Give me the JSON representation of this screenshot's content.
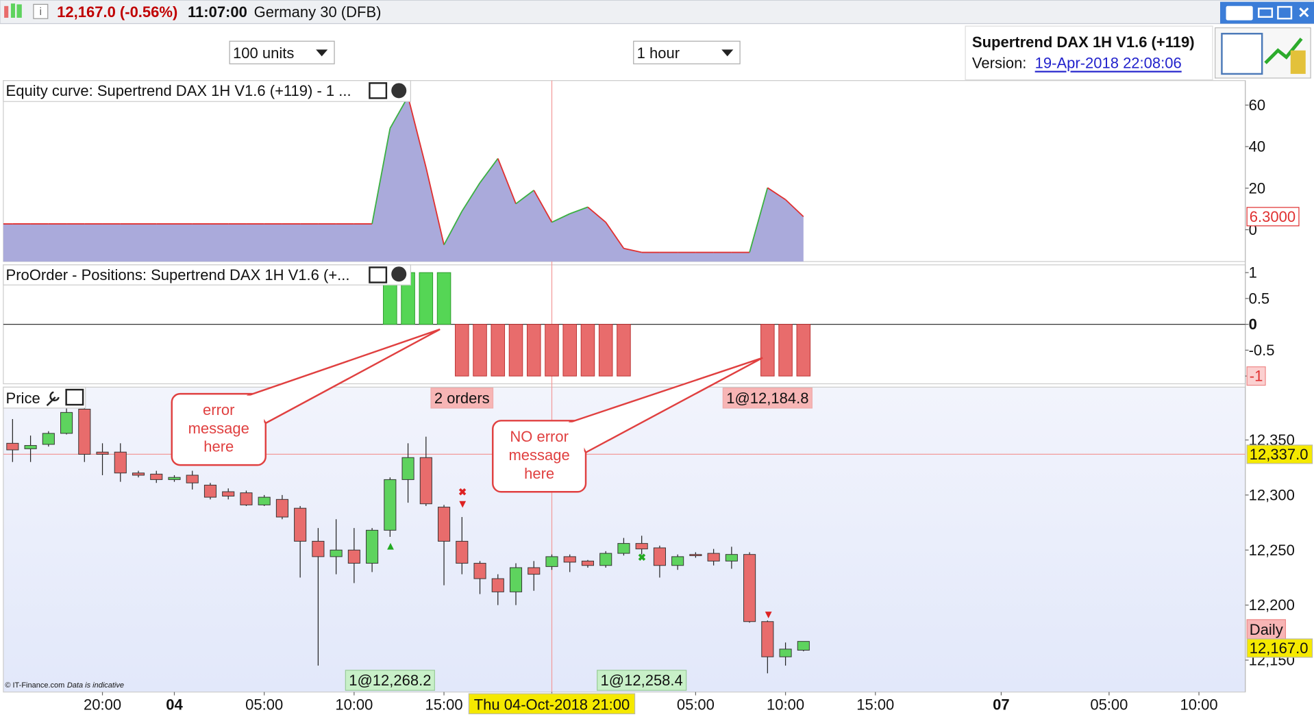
{
  "header": {
    "price_change": "12,167.0 (-0.56%)",
    "time": "11:07:00",
    "instrument": "Germany 30 (DFB)"
  },
  "toolbar": {
    "quantity": "100 units",
    "timeframe": "1 hour"
  },
  "strategy": {
    "name": "Supertrend DAX 1H V1.6 (+119)",
    "version_label": "Version:",
    "version_date": "19-Apr-2018 22:08:06"
  },
  "equity": {
    "title": "Equity curve: Supertrend DAX 1H V1.6 (+119) - 1 ...",
    "up_color": "#3cb043",
    "down_color": "#e03030",
    "fill": "#aaaadb",
    "values": [
      2.8,
      2.8,
      2.8,
      2.8,
      2.8,
      2.8,
      2.8,
      2.8,
      2.8,
      2.8,
      2.8,
      2.8,
      2.8,
      2.8,
      2.8,
      2.8,
      2.8,
      2.8,
      2.8,
      2.8,
      2.8,
      48.8,
      64.1,
      30,
      -7.3,
      8.9,
      22.6,
      34.3,
      12.5,
      19,
      3.6,
      7.7,
      10.9,
      3.6,
      -9,
      -10.9,
      -10.9,
      -10.9,
      -10.9,
      -10.9,
      -10.9,
      -10.9,
      20.2,
      14.5,
      6.3
    ],
    "last_value_label": "6.3000",
    "ylim": [
      -15.3,
      71.8
    ],
    "yticks": [
      0,
      20,
      40,
      60
    ]
  },
  "positions": {
    "title": "ProOrder - Positions: Supertrend DAX 1H V1.6 (+...",
    "long_color": "#55d655",
    "short_color": "#e86c6c",
    "values": [
      0,
      0,
      0,
      0,
      0,
      0,
      0,
      0,
      0,
      0,
      0,
      0,
      0,
      0,
      0,
      0,
      0,
      0,
      0,
      0,
      0,
      1,
      1,
      1,
      1,
      -1,
      -1,
      -1,
      -1,
      -1,
      -1,
      -1,
      -1,
      -1,
      -1,
      0,
      0,
      0,
      0,
      0,
      0,
      0,
      -1,
      -1,
      -1
    ],
    "ylim": [
      -1.15,
      1.15
    ],
    "yticks": [
      1,
      0.5,
      0,
      -0.5,
      -1
    ]
  },
  "price": {
    "title": "Price",
    "up_color": "#5ed35e",
    "down_color": "#e86c6c",
    "open": [
      12347,
      12342,
      12346,
      12356,
      12378,
      12339,
      12339,
      12320,
      12319,
      12314,
      12318,
      12309,
      12303,
      12302,
      12291,
      12296,
      12288,
      12258,
      12244,
      12250,
      12238,
      12268,
      12314,
      12334,
      12289,
      12258,
      12238,
      12224,
      12212,
      12234,
      12235,
      12244,
      12240,
      12236,
      12247,
      12256,
      12252,
      12236,
      12246,
      12247,
      12240,
      12246,
      12185,
      12153,
      12159
    ],
    "high": [
      12369,
      12354,
      12358,
      12380,
      12379,
      12347,
      12347,
      12322,
      12322,
      12318,
      12322,
      12311,
      12306,
      12304,
      12300,
      12300,
      12290,
      12270,
      12278,
      12270,
      12270,
      12316,
      12347,
      12353,
      12291,
      12280,
      12240,
      12228,
      12238,
      12240,
      12246,
      12246,
      12241,
      12249,
      12261,
      12263,
      12254,
      12246,
      12248,
      12251,
      12253,
      12248,
      12186,
      12166,
      12167
    ],
    "low": [
      12330,
      12330,
      12344,
      12355,
      12330,
      12318,
      12312,
      12316,
      12311,
      12312,
      12305,
      12296,
      12296,
      12290,
      12290,
      12278,
      12225,
      12145,
      12228,
      12220,
      12230,
      12262,
      12293,
      12290,
      12218,
      12228,
      12210,
      12200,
      12200,
      12213,
      12232,
      12230,
      12234,
      12234,
      12245,
      12246,
      12225,
      12232,
      12243,
      12236,
      12233,
      12184,
      12138,
      12145,
      12158
    ],
    "close": [
      12341,
      12345,
      12356,
      12375,
      12337,
      12337,
      12320,
      12318,
      12314,
      12316,
      12311,
      12298,
      12299,
      12291,
      12298,
      12280,
      12258,
      12244,
      12250,
      12238,
      12268,
      12314,
      12334,
      12292,
      12258,
      12238,
      12224,
      12212,
      12234,
      12228,
      12244,
      12239,
      12236,
      12247,
      12256,
      12251,
      12236,
      12244,
      12245,
      12240,
      12246,
      12185,
      12153,
      12160,
      12167
    ],
    "ylim": [
      12121,
      12398
    ],
    "yticks": [
      {
        "value": 12350,
        "label": "12,350"
      },
      {
        "value": 12300,
        "label": "12,300"
      },
      {
        "value": 12250,
        "label": "12,250"
      },
      {
        "value": 12200,
        "label": "12,200"
      },
      {
        "value": 12150,
        "label": "12,150"
      }
    ],
    "crosshair": {
      "value": 12337,
      "label": "12,337.0"
    },
    "daily_label": "Daily",
    "last": {
      "value": 12167,
      "label": "12,167.0"
    },
    "order_labels": [
      "2 orders",
      "1@12,184.8"
    ],
    "fill_labels": [
      "1@12,268.2",
      "1@12,258.4"
    ]
  },
  "callouts": [
    {
      "lines": [
        "error",
        "message",
        "here"
      ]
    },
    {
      "lines": [
        "NO error",
        "message",
        "here"
      ]
    }
  ],
  "x_axis": {
    "labels": [
      "20:00",
      "04",
      "05:00",
      "10:00",
      "15:00",
      "Thu 04-Oct-2018 21:00",
      "05:00",
      "10:00",
      "15:00",
      "07",
      "05:00",
      "10:00"
    ]
  },
  "footer": {
    "source": "© IT-Finance.com",
    "note": "Data is indicative"
  }
}
